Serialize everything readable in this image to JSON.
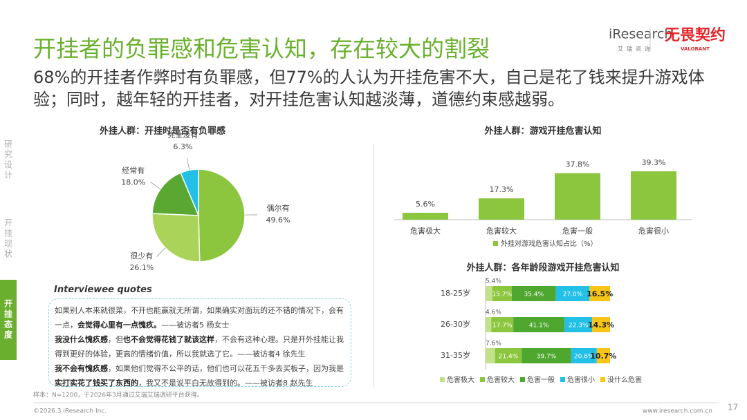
{
  "header": {
    "title": "开挂者的负罪感和危害认知，存在较大的割裂",
    "subtitle": "68%的开挂者作弊时有负罪感，但77%的人认为开挂危害不大，自己是花了钱来提升游戏体验；同时，越年轻的开挂者，对开挂危害认知越淡薄，道德约束感越弱。"
  },
  "logos": {
    "brand": "iResearch",
    "brand_cn": "艾瑞咨询",
    "game": "无畏契约",
    "game_en": "VALORANT"
  },
  "sidebar": [
    {
      "label": "研究设计",
      "active": false
    },
    {
      "label": "开挂现状",
      "active": false
    },
    {
      "label": "开挂态度",
      "active": true
    }
  ],
  "chart_data": [
    {
      "type": "pie",
      "title": "外挂人群：开挂时是否有负罪感",
      "categories": [
        "偶尔有",
        "很少有",
        "经常有",
        "完全没有"
      ],
      "values": [
        49.6,
        26.1,
        18.0,
        6.3
      ],
      "value_labels": [
        "49.6%",
        "26.1%",
        "18.0%",
        "6.3%"
      ],
      "colors": [
        "#8cc63f",
        "#aad35a",
        "#5aa832",
        "#22bfe6"
      ]
    },
    {
      "type": "bar",
      "title": "外挂人群：游戏开挂危害认知",
      "categories": [
        "危害极大",
        "危害较大",
        "危害一般",
        "危害很小"
      ],
      "series": [
        {
          "name": "外挂对游戏危害认知占比（%）",
          "color": "#8cc63f",
          "values": [
            5.6,
            17.3,
            37.8,
            39.3
          ],
          "value_labels": [
            "5.6%",
            "17.3%",
            "37.8%",
            "39.3%"
          ]
        }
      ]
    },
    {
      "type": "stacked_hbar",
      "title": "外挂人群：各年龄段游戏开挂危害认知",
      "categories": [
        "18-25岁",
        "26-30岁",
        "31-35岁"
      ],
      "series": [
        {
          "name": "危害极大",
          "color": "#c3e08a",
          "values": [
            5.4,
            4.6,
            7.6
          ],
          "value_labels": [
            "5.4%",
            "4.6%",
            "7.6%"
          ]
        },
        {
          "name": "危害较大",
          "color": "#8cc63f",
          "values": [
            15.7,
            17.7,
            21.4
          ],
          "value_labels": [
            "15.7%",
            "17.7%",
            "21.4%"
          ]
        },
        {
          "name": "危害一般",
          "color": "#4ea72e",
          "values": [
            35.4,
            41.1,
            39.7
          ],
          "value_labels": [
            "35.4%",
            "41.1%",
            "39.7%"
          ]
        },
        {
          "name": "危害很小",
          "color": "#22bfe6",
          "values": [
            27.0,
            22.3,
            20.6
          ],
          "value_labels": [
            "27.0%",
            "22.3%",
            "20.6%"
          ]
        },
        {
          "name": "没什么危害",
          "color": "#f7c518",
          "values": [
            16.5,
            14.3,
            10.7
          ],
          "value_labels": [
            "16.5%",
            "14.3%",
            "10.7%"
          ]
        }
      ]
    }
  ],
  "quotes": {
    "heading": "Interviewee quotes",
    "items": [
      {
        "segments": [
          {
            "text": "如果别人本来就很菜，不开也能赢就无所谓，如果确实对面玩的还不错的情况下，会有一点，",
            "bold": false
          },
          {
            "text": "会觉得心里有一点愧疚。",
            "bold": true
          },
          {
            "text": "——被访者5 杨女士",
            "bold": false
          }
        ]
      },
      {
        "segments": [
          {
            "text": "我没什么愧疚感",
            "bold": true
          },
          {
            "text": "，但",
            "bold": false
          },
          {
            "text": "也不会觉得花钱了就该这样",
            "bold": true
          },
          {
            "text": "，不会有这种心理。只是开外挂能让我得到更好的体验，更高的情绪价值，所以我就选了它。——被访者4 徐先生",
            "bold": false
          }
        ]
      },
      {
        "segments": [
          {
            "text": "我不会有愧疚感",
            "bold": true
          },
          {
            "text": "，如果他们觉得不公平的话，他们也可以花五千多去买板子，因为我是",
            "bold": false
          },
          {
            "text": "实打实花了钱买了东西的",
            "bold": true
          },
          {
            "text": "，我又不是说平白无故得到的。——被访者8 赵先生",
            "bold": false
          }
        ]
      }
    ]
  },
  "footer": {
    "note": "样本：N=1200，于2026年3月通过艾瑞艾瑞调研平台获得。",
    "copyright": "©2026.3 iResearch Inc.",
    "website": "www.iresearch.com.cn",
    "page": 17
  }
}
